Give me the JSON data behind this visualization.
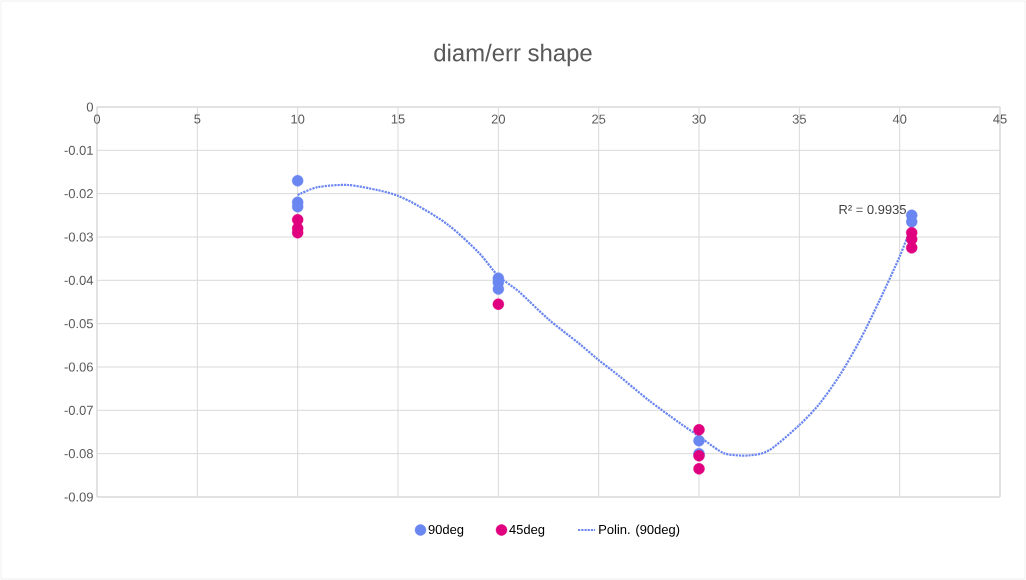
{
  "chart_data": {
    "type": "scatter",
    "title": "diam/err shape",
    "series": [
      {
        "name": "90deg",
        "color": "#6a86f0",
        "marker": "circle",
        "x": [
          10,
          10,
          10,
          20,
          20,
          20,
          30,
          30,
          40.6,
          40.6
        ],
        "values": [
          -0.017,
          -0.022,
          -0.023,
          -0.0395,
          -0.0405,
          -0.042,
          -0.077,
          -0.08,
          -0.025,
          -0.0265
        ]
      },
      {
        "name": "45deg",
        "color": "#e0007f",
        "marker": "circle",
        "x": [
          10,
          10,
          10,
          20,
          30,
          30,
          30,
          40.6,
          40.6,
          40.6
        ],
        "values": [
          -0.026,
          -0.028,
          -0.029,
          -0.0455,
          -0.0745,
          -0.0805,
          -0.0835,
          -0.029,
          -0.0305,
          -0.0325
        ]
      },
      {
        "name": "Polin. (90deg)",
        "type": "line",
        "line_style": "dotted",
        "marker": "none",
        "color": "#6a86f0",
        "x": [
          10,
          11,
          12.5,
          14,
          15,
          16,
          17.5,
          19,
          20,
          21,
          22.5,
          24,
          25,
          26,
          27.5,
          29,
          30,
          31,
          31.5,
          32.5,
          33.5,
          35,
          36,
          37,
          38,
          39,
          40,
          40.6
        ],
        "values": [
          -0.0203,
          -0.0185,
          -0.018,
          -0.0192,
          -0.0205,
          -0.0228,
          -0.0272,
          -0.0335,
          -0.039,
          -0.0425,
          -0.049,
          -0.0545,
          -0.0584,
          -0.062,
          -0.0677,
          -0.0728,
          -0.076,
          -0.0793,
          -0.0802,
          -0.0804,
          -0.0792,
          -0.0734,
          -0.0685,
          -0.062,
          -0.054,
          -0.0446,
          -0.0345,
          -0.0273
        ]
      }
    ],
    "xlim": [
      0,
      45
    ],
    "xticks": [
      0,
      5,
      10,
      15,
      20,
      25,
      30,
      35,
      40,
      45
    ],
    "ylim": [
      -0.09,
      0
    ],
    "yticks": [
      -0.09,
      -0.08,
      -0.07,
      -0.06,
      -0.05,
      -0.04,
      -0.03,
      -0.02,
      -0.01,
      0
    ],
    "annotations": [
      {
        "text": "R² = 0.9935",
        "x": 40.6,
        "y": -0.025
      }
    ],
    "grid": true,
    "legend": "bottom"
  }
}
